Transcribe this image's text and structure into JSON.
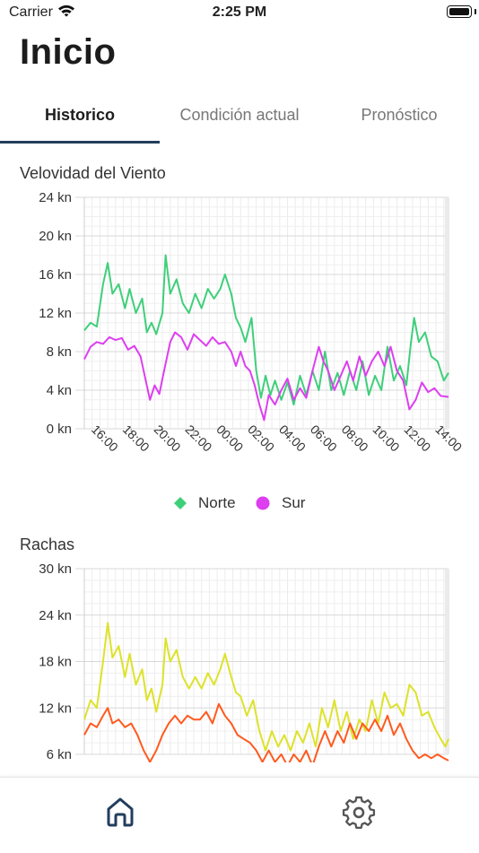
{
  "status_bar": {
    "carrier": "Carrier",
    "time": "2:25 PM"
  },
  "page": {
    "title": "Inicio"
  },
  "tabs": [
    {
      "label": "Historico",
      "active": true
    },
    {
      "label": "Condición actual",
      "active": false
    },
    {
      "label": "Pronóstico",
      "active": false
    }
  ],
  "colors": {
    "accent": "#223e5c",
    "norte": "#3fcf7a",
    "sur": "#dd3ef0",
    "rachas_norte": "#dde22a",
    "rachas_sur": "#ff5a1e"
  },
  "wind_chart": {
    "title": "Velovidad del Viento",
    "legend": [
      {
        "name": "Norte",
        "marker": "diamond"
      },
      {
        "name": "Sur",
        "marker": "circle"
      }
    ]
  },
  "gust_chart": {
    "title": "Rachas"
  },
  "bottom_nav": [
    {
      "icon": "home-icon",
      "active": true
    },
    {
      "icon": "gear-icon",
      "active": false
    }
  ],
  "chart_data": [
    {
      "type": "line",
      "title": "Velovidad del Viento",
      "yunit": "kn",
      "ylim": [
        0,
        24
      ],
      "yticks": [
        "0 kn",
        "4 kn",
        "8 kn",
        "12 kn",
        "16 kn",
        "20 kn",
        "24 kn"
      ],
      "xlim": [
        15.0,
        38.3
      ],
      "xticks": [
        "16:00",
        "18:00",
        "20:00",
        "22:00",
        "00:00",
        "02:00",
        "04:00",
        "06:00",
        "08:00",
        "10:00",
        "12:00",
        "14:00"
      ],
      "grid": true,
      "legend_position": "bottom",
      "series": [
        {
          "name": "Norte",
          "points": [
            [
              15.0,
              10.2
            ],
            [
              15.4,
              11
            ],
            [
              15.8,
              10.6
            ],
            [
              16.2,
              15
            ],
            [
              16.5,
              17.2
            ],
            [
              16.8,
              14
            ],
            [
              17.2,
              15
            ],
            [
              17.6,
              12.5
            ],
            [
              17.9,
              14.5
            ],
            [
              18.3,
              12
            ],
            [
              18.7,
              13.5
            ],
            [
              19.0,
              10
            ],
            [
              19.3,
              11
            ],
            [
              19.6,
              9.8
            ],
            [
              20.0,
              12
            ],
            [
              20.2,
              18
            ],
            [
              20.5,
              14
            ],
            [
              20.9,
              15.5
            ],
            [
              21.3,
              13
            ],
            [
              21.7,
              12
            ],
            [
              22.1,
              14
            ],
            [
              22.5,
              12.5
            ],
            [
              22.9,
              14.5
            ],
            [
              23.3,
              13.5
            ],
            [
              23.7,
              14.5
            ],
            [
              24.0,
              16
            ],
            [
              24.4,
              14
            ],
            [
              24.7,
              11.5
            ],
            [
              25.0,
              10.5
            ],
            [
              25.3,
              9
            ],
            [
              25.7,
              11.5
            ],
            [
              26.0,
              6
            ],
            [
              26.3,
              3.2
            ],
            [
              26.6,
              5.5
            ],
            [
              26.9,
              3.5
            ],
            [
              27.2,
              5
            ],
            [
              27.6,
              3
            ],
            [
              28.0,
              4.8
            ],
            [
              28.4,
              2.5
            ],
            [
              28.8,
              5.5
            ],
            [
              29.2,
              3.5
            ],
            [
              29.6,
              6
            ],
            [
              30.0,
              4
            ],
            [
              30.4,
              8
            ],
            [
              30.8,
              4
            ],
            [
              31.2,
              5.8
            ],
            [
              31.6,
              3.5
            ],
            [
              32.0,
              6
            ],
            [
              32.4,
              4
            ],
            [
              32.8,
              7
            ],
            [
              33.2,
              3.5
            ],
            [
              33.6,
              5.5
            ],
            [
              34.0,
              4
            ],
            [
              34.4,
              8.5
            ],
            [
              34.8,
              5
            ],
            [
              35.2,
              6.5
            ],
            [
              35.6,
              4.5
            ],
            [
              35.9,
              9
            ],
            [
              36.1,
              11.5
            ],
            [
              36.4,
              9
            ],
            [
              36.8,
              10
            ],
            [
              37.2,
              7.5
            ],
            [
              37.6,
              7
            ],
            [
              38.0,
              5
            ],
            [
              38.3,
              5.8
            ]
          ]
        },
        {
          "name": "Sur",
          "points": [
            [
              15.0,
              7.2
            ],
            [
              15.4,
              8.5
            ],
            [
              15.8,
              9
            ],
            [
              16.2,
              8.8
            ],
            [
              16.6,
              9.5
            ],
            [
              17.0,
              9.2
            ],
            [
              17.4,
              9.4
            ],
            [
              17.8,
              8.2
            ],
            [
              18.2,
              8.6
            ],
            [
              18.6,
              7.5
            ],
            [
              18.9,
              5.2
            ],
            [
              19.2,
              3
            ],
            [
              19.5,
              4.5
            ],
            [
              19.8,
              3.6
            ],
            [
              20.1,
              6
            ],
            [
              20.5,
              9
            ],
            [
              20.8,
              10
            ],
            [
              21.2,
              9.5
            ],
            [
              21.6,
              8.2
            ],
            [
              22.0,
              9.8
            ],
            [
              22.4,
              9.2
            ],
            [
              22.8,
              8.6
            ],
            [
              23.2,
              9.5
            ],
            [
              23.6,
              8.8
            ],
            [
              24.0,
              9
            ],
            [
              24.4,
              8
            ],
            [
              24.7,
              6.5
            ],
            [
              25.0,
              8
            ],
            [
              25.3,
              6.5
            ],
            [
              25.6,
              6
            ],
            [
              25.9,
              4.5
            ],
            [
              26.2,
              2.5
            ],
            [
              26.5,
              0.9
            ],
            [
              26.8,
              3.5
            ],
            [
              27.2,
              2.5
            ],
            [
              27.6,
              4
            ],
            [
              28.0,
              5.2
            ],
            [
              28.4,
              3
            ],
            [
              28.8,
              4.2
            ],
            [
              29.2,
              3.2
            ],
            [
              29.6,
              6
            ],
            [
              30.0,
              8.5
            ],
            [
              30.3,
              7
            ],
            [
              30.6,
              6
            ],
            [
              31.0,
              4
            ],
            [
              31.4,
              5.5
            ],
            [
              31.8,
              7
            ],
            [
              32.2,
              5
            ],
            [
              32.6,
              7.5
            ],
            [
              33.0,
              5.5
            ],
            [
              33.4,
              7
            ],
            [
              33.8,
              8
            ],
            [
              34.2,
              6.5
            ],
            [
              34.6,
              8.5
            ],
            [
              35.0,
              6
            ],
            [
              35.4,
              5
            ],
            [
              35.8,
              2
            ],
            [
              36.2,
              3
            ],
            [
              36.6,
              4.8
            ],
            [
              37.0,
              3.8
            ],
            [
              37.4,
              4.2
            ],
            [
              37.8,
              3.4
            ],
            [
              38.3,
              3.3
            ]
          ]
        }
      ]
    },
    {
      "type": "line",
      "title": "Rachas",
      "yunit": "kn",
      "ylim": [
        6,
        30
      ],
      "yticks": [
        "6 kn",
        "12 kn",
        "18 kn",
        "24 kn",
        "30 kn"
      ],
      "xlim": [
        15.0,
        38.3
      ],
      "grid": true,
      "series": [
        {
          "points": [
            [
              15.0,
              10.5
            ],
            [
              15.4,
              13
            ],
            [
              15.8,
              12
            ],
            [
              16.2,
              18
            ],
            [
              16.5,
              23
            ],
            [
              16.8,
              18.5
            ],
            [
              17.2,
              20
            ],
            [
              17.6,
              16
            ],
            [
              17.9,
              19
            ],
            [
              18.3,
              15
            ],
            [
              18.7,
              17
            ],
            [
              19.0,
              13
            ],
            [
              19.3,
              14.5
            ],
            [
              19.6,
              11.5
            ],
            [
              20.0,
              15
            ],
            [
              20.2,
              21
            ],
            [
              20.5,
              18
            ],
            [
              20.9,
              19.5
            ],
            [
              21.3,
              16
            ],
            [
              21.7,
              14.5
            ],
            [
              22.1,
              16
            ],
            [
              22.5,
              14.5
            ],
            [
              22.9,
              16.5
            ],
            [
              23.3,
              15
            ],
            [
              23.7,
              17
            ],
            [
              24.0,
              19
            ],
            [
              24.4,
              16
            ],
            [
              24.7,
              14
            ],
            [
              25.0,
              13.5
            ],
            [
              25.4,
              11
            ],
            [
              25.8,
              13
            ],
            [
              26.2,
              9
            ],
            [
              26.6,
              6.5
            ],
            [
              27.0,
              9
            ],
            [
              27.4,
              7
            ],
            [
              27.8,
              8.5
            ],
            [
              28.2,
              6.5
            ],
            [
              28.6,
              9
            ],
            [
              29.0,
              7.5
            ],
            [
              29.4,
              10
            ],
            [
              29.8,
              7
            ],
            [
              30.2,
              12
            ],
            [
              30.6,
              9.5
            ],
            [
              31.0,
              13
            ],
            [
              31.4,
              9
            ],
            [
              31.8,
              11.5
            ],
            [
              32.2,
              8
            ],
            [
              32.6,
              10.5
            ],
            [
              33.0,
              9
            ],
            [
              33.4,
              13
            ],
            [
              33.8,
              10
            ],
            [
              34.2,
              14
            ],
            [
              34.6,
              12
            ],
            [
              35.0,
              12.5
            ],
            [
              35.4,
              11
            ],
            [
              35.8,
              15
            ],
            [
              36.2,
              14
            ],
            [
              36.6,
              11
            ],
            [
              37.0,
              11.5
            ],
            [
              37.4,
              9.5
            ],
            [
              37.8,
              8
            ],
            [
              38.1,
              7
            ],
            [
              38.3,
              8
            ]
          ]
        },
        {
          "points": [
            [
              15.0,
              8.5
            ],
            [
              15.4,
              10
            ],
            [
              15.8,
              9.5
            ],
            [
              16.2,
              11
            ],
            [
              16.5,
              12
            ],
            [
              16.8,
              10
            ],
            [
              17.2,
              10.5
            ],
            [
              17.6,
              9.5
            ],
            [
              18.0,
              10
            ],
            [
              18.4,
              8.5
            ],
            [
              18.8,
              6.5
            ],
            [
              19.2,
              5
            ],
            [
              19.6,
              6.5
            ],
            [
              20.0,
              8.5
            ],
            [
              20.4,
              10
            ],
            [
              20.8,
              11
            ],
            [
              21.2,
              10
            ],
            [
              21.6,
              11
            ],
            [
              22.0,
              10.5
            ],
            [
              22.4,
              10.5
            ],
            [
              22.8,
              11.5
            ],
            [
              23.2,
              10
            ],
            [
              23.6,
              12.5
            ],
            [
              24.0,
              11
            ],
            [
              24.4,
              10
            ],
            [
              24.8,
              8.5
            ],
            [
              25.2,
              8
            ],
            [
              25.6,
              7.5
            ],
            [
              26.0,
              6.5
            ],
            [
              26.4,
              5
            ],
            [
              26.8,
              6.5
            ],
            [
              27.2,
              5
            ],
            [
              27.6,
              6
            ],
            [
              28.0,
              4.5
            ],
            [
              28.4,
              6
            ],
            [
              28.8,
              5
            ],
            [
              29.2,
              6.5
            ],
            [
              29.6,
              4.5
            ],
            [
              30.0,
              7
            ],
            [
              30.4,
              9
            ],
            [
              30.8,
              7
            ],
            [
              31.2,
              9
            ],
            [
              31.6,
              7.5
            ],
            [
              32.0,
              10
            ],
            [
              32.4,
              8
            ],
            [
              32.8,
              10
            ],
            [
              33.2,
              9
            ],
            [
              33.6,
              10.5
            ],
            [
              34.0,
              9
            ],
            [
              34.4,
              11
            ],
            [
              34.8,
              8.5
            ],
            [
              35.2,
              10
            ],
            [
              35.6,
              8
            ],
            [
              36.0,
              6.5
            ],
            [
              36.4,
              5.5
            ],
            [
              36.8,
              6
            ],
            [
              37.2,
              5.5
            ],
            [
              37.6,
              6
            ],
            [
              38.0,
              5.5
            ],
            [
              38.3,
              5.2
            ]
          ]
        }
      ]
    }
  ]
}
